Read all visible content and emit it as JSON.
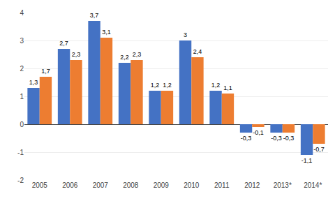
{
  "chart_data": {
    "type": "bar",
    "categories": [
      "2005",
      "2006",
      "2007",
      "2008",
      "2009",
      "2010",
      "2011",
      "2012",
      "2013*",
      "2014*"
    ],
    "series": [
      {
        "color": "#4472C4",
        "values": [
          1.3,
          2.7,
          3.7,
          2.2,
          1.2,
          3.0,
          1.2,
          -0.3,
          -0.3,
          -1.1
        ],
        "value_labels": [
          "1,3",
          "2,7",
          "3,7",
          "2,2",
          "1,2",
          "3",
          "1,2",
          "-0,3",
          "-0,3",
          "-1,1"
        ]
      },
      {
        "color": "#ED7D31",
        "values": [
          1.7,
          2.3,
          3.1,
          2.3,
          1.2,
          2.4,
          1.1,
          -0.1,
          -0.3,
          -0.7
        ],
        "value_labels": [
          "1,7",
          "2,3",
          "3,1",
          "2,3",
          "1,2",
          "2,4",
          "1,1",
          "-0,1",
          "-0,3",
          "-0,7"
        ]
      }
    ],
    "ylim": [
      -2,
      4
    ],
    "yticks": [
      -2,
      -1,
      0,
      1,
      2,
      3,
      4
    ],
    "grid": true,
    "data_labels": true
  }
}
